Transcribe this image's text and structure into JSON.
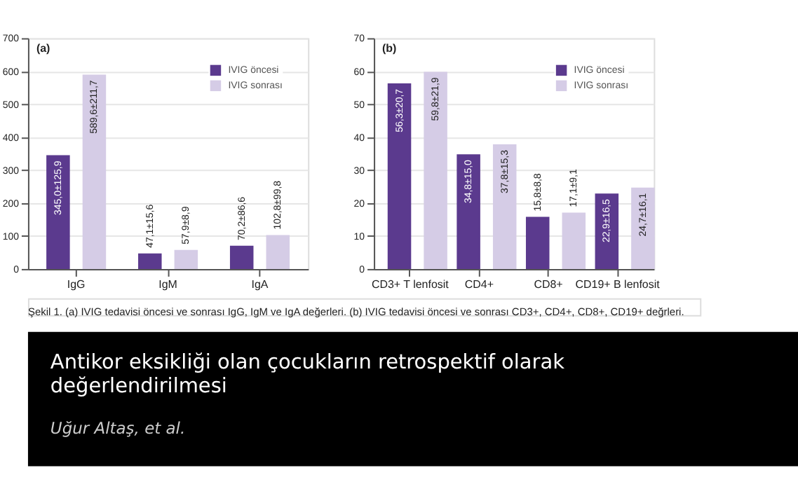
{
  "chart_data": [
    {
      "type": "bar",
      "title": "(a)",
      "categories": [
        "IgG",
        "IgM",
        "IgA"
      ],
      "series": [
        {
          "name": "IVIG öncesi",
          "color": "#5b3a8e",
          "values": [
            345.0,
            47.1,
            70.2
          ],
          "value_labels": [
            "345,0±125,9",
            "47,1±15,6",
            "70,2±86,6"
          ]
        },
        {
          "name": "IVIG sonrası",
          "color": "#d5cce6",
          "values": [
            589.6,
            57.9,
            102.8
          ],
          "value_labels": [
            "589,6±211,7",
            "57,9±8,9",
            "102,8±99,8"
          ]
        }
      ],
      "ylim": [
        0,
        700
      ],
      "yticks": [
        0,
        100,
        200,
        300,
        400,
        500,
        600,
        700
      ],
      "grid": "y",
      "legend": "top right",
      "annotations": [
        "Şekil 1. (a) IVIG tedavisi öncesi ve sonrası IgG, IgM ve IgA değerleri. (b) IVIG tedavisi öncesi ve sonrası CD3+, CD4+, CD8+, CD19+ değrleri."
      ]
    },
    {
      "type": "bar",
      "title": "(b)",
      "categories": [
        "CD3+ T lenfosit",
        "CD4+",
        "CD8+",
        "CD19+ B lenfosit"
      ],
      "series": [
        {
          "name": "IVIG öncesi",
          "color": "#5b3a8e",
          "values": [
            56.3,
            34.8,
            15.8,
            22.9
          ],
          "value_labels": [
            "56,3±20,7",
            "34,8±15,0",
            "15,8±8,8",
            "22,9±16,5"
          ]
        },
        {
          "name": "IVIG sonrası",
          "color": "#d5cce6",
          "values": [
            59.8,
            37.8,
            17.1,
            24.7
          ],
          "value_labels": [
            "59,8±21,9",
            "37,8±15,3",
            "17,1±9,1",
            "24,7±16,1"
          ]
        }
      ],
      "ylim": [
        0,
        70
      ],
      "yticks": [
        0,
        10,
        20,
        30,
        40,
        50,
        60,
        70
      ],
      "grid": "y",
      "legend": "top right",
      "annotations": [
        "Antikor eksikliği olan çocukların retrospektif olarak değerlendirilmesi",
        "Uğur Altaş, et al."
      ]
    }
  ]
}
